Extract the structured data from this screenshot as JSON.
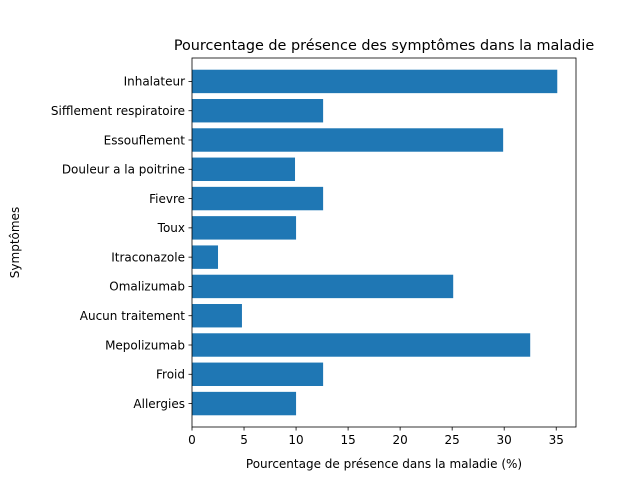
{
  "chart_data": {
    "type": "bar",
    "orientation": "horizontal",
    "title": "Pourcentage de présence des symptômes dans la maladie",
    "xlabel": "Pourcentage de présence dans la maladie (%)",
    "ylabel": "Symptômes",
    "categories": [
      "Allergies",
      "Froid",
      "Mepolizumab",
      "Aucun traitement",
      "Omalizumab",
      "Itraconazole",
      "Toux",
      "Fievre",
      "Douleur a la poitrine",
      "Essouflement",
      "Sifflement respiratoire",
      "Inhalateur"
    ],
    "values": [
      10,
      12.6,
      32.5,
      4.8,
      25.1,
      2.5,
      10,
      12.6,
      9.9,
      29.9,
      12.6,
      35.1
    ],
    "xlim": [
      0,
      36.9
    ],
    "xticks": [
      0,
      5,
      10,
      15,
      20,
      25,
      30,
      35
    ],
    "grid": false,
    "legend": "none",
    "bar_color": "#1f77b4"
  }
}
